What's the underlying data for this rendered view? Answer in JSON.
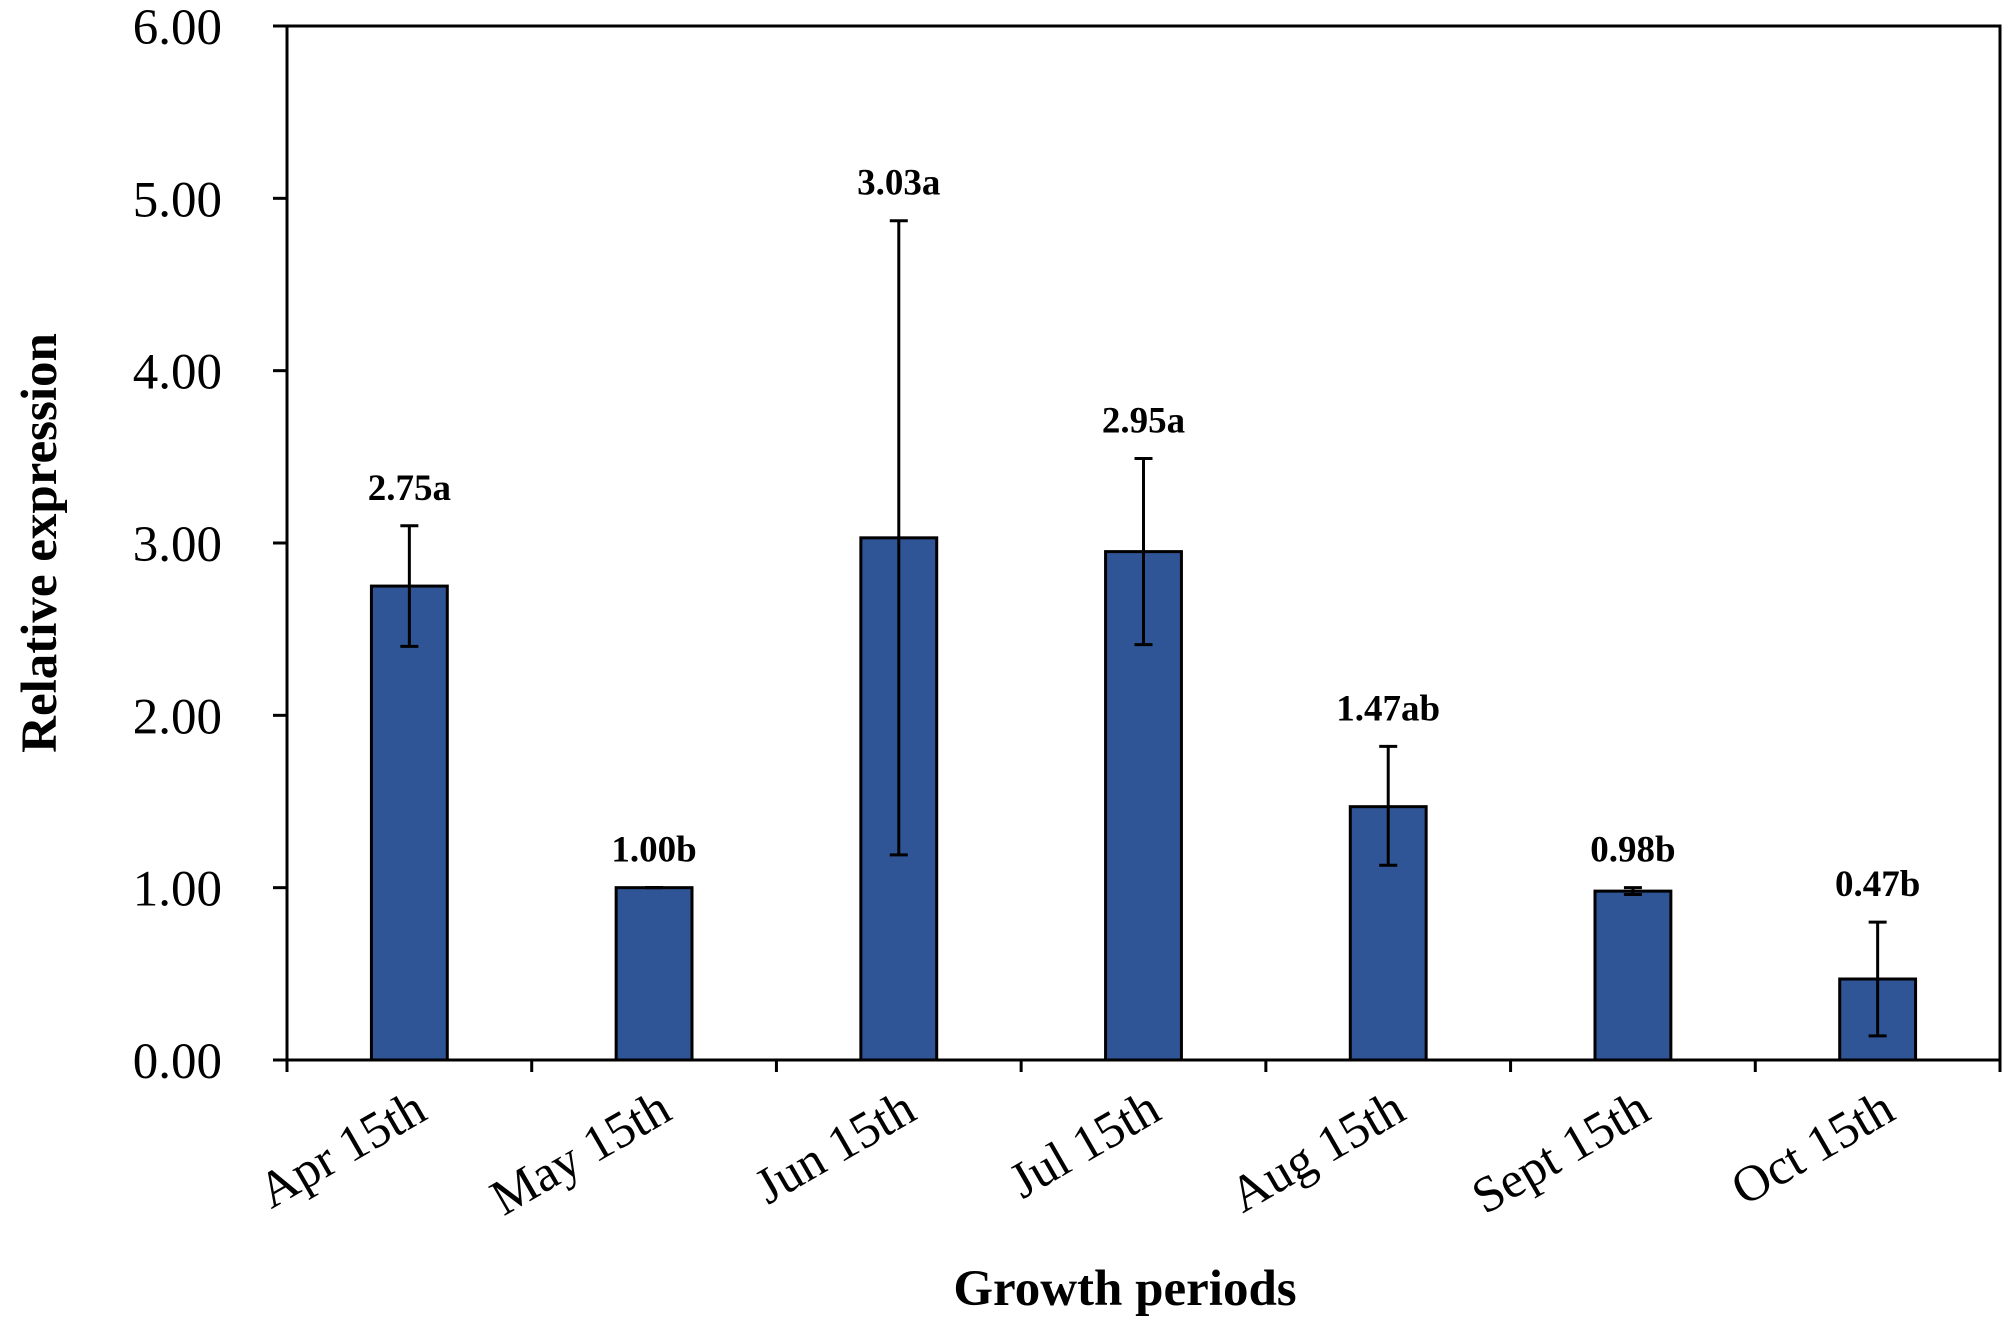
{
  "chart_data": {
    "type": "bar",
    "title": "",
    "xlabel": "Growth periods",
    "ylabel": "Relative expression",
    "ylim": [
      0,
      6
    ],
    "yticks": [
      "0.00",
      "1.00",
      "2.00",
      "3.00",
      "4.00",
      "5.00",
      "6.00"
    ],
    "categories": [
      "Apr 15th",
      "May 15th",
      "Jun 15th",
      "Jul 15th",
      "Aug 15th",
      "Sept 15th",
      "Oct 15th"
    ],
    "values": [
      2.75,
      1.0,
      3.03,
      2.95,
      1.47,
      0.98,
      0.47
    ],
    "error_low": [
      2.4,
      1.0,
      1.19,
      2.41,
      1.13,
      0.96,
      0.14
    ],
    "error_high": [
      3.1,
      1.0,
      4.87,
      3.49,
      1.82,
      1.0,
      0.8
    ],
    "data_labels": [
      "2.75a",
      "1.00b",
      "3.03a",
      "2.95a",
      "1.47ab",
      "0.98b",
      "0.47b"
    ],
    "bar_color": "#2f5597",
    "grid": false,
    "legend": "none"
  }
}
